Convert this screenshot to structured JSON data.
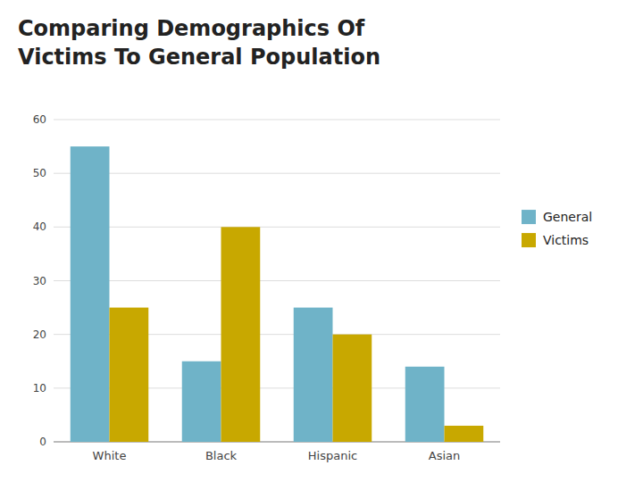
{
  "chart_data": {
    "type": "bar",
    "title": "Comparing Demographics Of\nVictims To General Population",
    "categories": [
      "White",
      "Black",
      "Hispanic",
      "Asian"
    ],
    "series": [
      {
        "name": "General",
        "color": "#6fb3c8",
        "values": [
          55,
          15,
          25,
          14
        ]
      },
      {
        "name": "Victims",
        "color": "#c8a800",
        "values": [
          25,
          40,
          20,
          3
        ]
      }
    ],
    "ylim": [
      0,
      60
    ],
    "yticks": [
      0,
      10,
      20,
      30,
      40,
      50,
      60
    ],
    "grid": true,
    "legend": "right"
  }
}
